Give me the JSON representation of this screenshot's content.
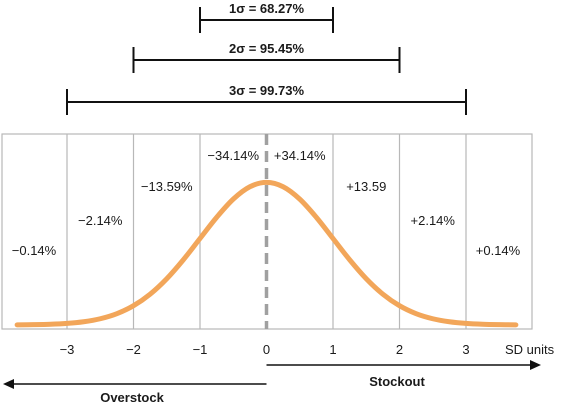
{
  "chart_data": {
    "type": "line",
    "title": "",
    "x": [
      -3.75,
      -3.5,
      -3.25,
      -3,
      -2.75,
      -2.5,
      -2.25,
      -2,
      -1.75,
      -1.5,
      -1.25,
      -1,
      -0.75,
      -0.5,
      -0.25,
      0,
      0.25,
      0.5,
      0.75,
      1,
      1.25,
      1.5,
      1.75,
      2,
      2.25,
      2.5,
      2.75,
      3,
      3.25,
      3.5,
      3.75
    ],
    "y": [
      0.0004,
      0.0009,
      0.002,
      0.0044,
      0.0091,
      0.0175,
      0.0317,
      0.054,
      0.0863,
      0.1295,
      0.1826,
      0.242,
      0.3011,
      0.3521,
      0.3867,
      0.3989,
      0.3867,
      0.3521,
      0.3011,
      0.242,
      0.1826,
      0.1295,
      0.0863,
      0.054,
      0.0317,
      0.0175,
      0.0091,
      0.0044,
      0.002,
      0.0009,
      0.0004
    ],
    "xlim": [
      -4,
      4
    ],
    "ylim": [
      0,
      0.4
    ],
    "xticks": [
      "−3",
      "−2",
      "−1",
      "0",
      "1",
      "2",
      "3"
    ],
    "xtick_values": [
      -3,
      -2,
      -1,
      0,
      1,
      2,
      3
    ],
    "xlabel": "SD units",
    "mean_line": {
      "x": 0,
      "style": "dashed"
    },
    "grid": "vertical lines at each SD unit",
    "curve_color": "#F2A65A",
    "band_labels": [
      {
        "text": "−0.14%",
        "x_from": -4,
        "x_to": -3
      },
      {
        "text": "−2.14%",
        "x_from": -3,
        "x_to": -2
      },
      {
        "text": "−13.59%",
        "x_from": -2,
        "x_to": -1
      },
      {
        "text": "−34.14%",
        "x_from": -1,
        "x_to": 0
      },
      {
        "text": "+34.14%",
        "x_from": 0,
        "x_to": 1
      },
      {
        "text": "+13.59",
        "x_from": 1,
        "x_to": 2
      },
      {
        "text": "+2.14%",
        "x_from": 2,
        "x_to": 3
      },
      {
        "text": "+0.14%",
        "x_from": 3,
        "x_to": 4
      }
    ],
    "ranges": [
      {
        "label": "1σ = 68.27%",
        "from": -1,
        "to": 1
      },
      {
        "label": "2σ = 95.45%",
        "from": -2,
        "to": 2
      },
      {
        "label": "3σ = 99.73%",
        "from": -3,
        "to": 3
      }
    ],
    "arrows": [
      {
        "label": "Overstock",
        "direction": "left"
      },
      {
        "label": "Stockout",
        "direction": "right"
      }
    ]
  }
}
